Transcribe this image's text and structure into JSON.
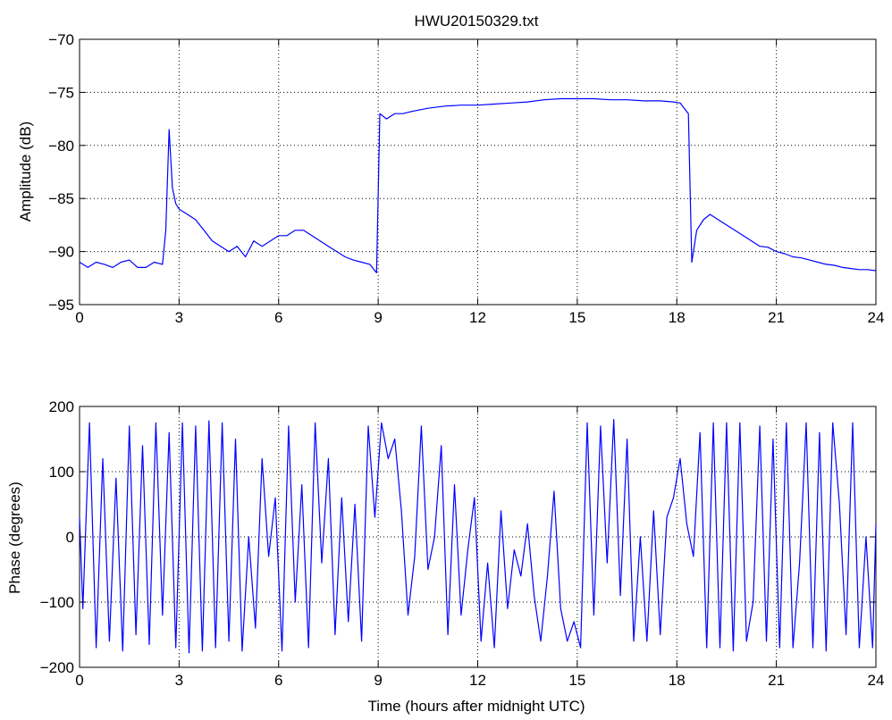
{
  "figure": {
    "title": "HWU20150329.txt"
  },
  "chart_data": [
    {
      "type": "line",
      "title": "HWU20150329.txt",
      "xlabel": "",
      "ylabel": "Amplitude (dB)",
      "xlim": [
        0,
        24
      ],
      "ylim": [
        -95,
        -70
      ],
      "xticks": [
        0,
        3,
        6,
        9,
        12,
        15,
        18,
        21,
        24
      ],
      "xtick_labels": [
        "0",
        "3",
        "6",
        "9",
        "12",
        "15",
        "18",
        "21",
        "24"
      ],
      "yticks": [
        -95,
        -90,
        -85,
        -80,
        -75,
        -70
      ],
      "ytick_labels": [
        "−95",
        "−90",
        "−85",
        "−80",
        "−75",
        "−70"
      ],
      "grid": true,
      "line_color": "#0000ff",
      "series": [
        {
          "x": [
            0,
            0.25,
            0.5,
            0.75,
            1,
            1.25,
            1.5,
            1.75,
            2,
            2.25,
            2.5,
            2.6,
            2.7,
            2.8,
            2.9,
            3,
            3.25,
            3.5,
            3.75,
            4,
            4.25,
            4.5,
            4.75,
            5,
            5.25,
            5.5,
            5.75,
            6,
            6.25,
            6.5,
            6.75,
            7,
            7.25,
            7.5,
            7.75,
            8,
            8.25,
            8.5,
            8.75,
            8.95,
            9.05,
            9.25,
            9.5,
            9.75,
            10,
            10.5,
            11,
            11.5,
            12,
            12.5,
            13,
            13.5,
            14,
            14.5,
            15,
            15.5,
            16,
            16.5,
            17,
            17.5,
            17.9,
            18.1,
            18.35,
            18.45,
            18.6,
            18.8,
            19,
            19.25,
            19.5,
            19.75,
            20,
            20.25,
            20.5,
            20.75,
            21,
            21.25,
            21.5,
            21.75,
            22,
            22.25,
            22.5,
            22.75,
            23,
            23.25,
            23.5,
            23.75,
            24
          ],
          "y": [
            -91,
            -91.5,
            -91,
            -91.2,
            -91.5,
            -91,
            -90.8,
            -91.5,
            -91.5,
            -91,
            -91.2,
            -88,
            -78.5,
            -84,
            -85.5,
            -86,
            -86.5,
            -87,
            -88,
            -89,
            -89.5,
            -90,
            -89.5,
            -90.5,
            -89,
            -89.5,
            -89,
            -88.5,
            -88.5,
            -88,
            -88,
            -88.5,
            -89,
            -89.5,
            -90,
            -90.5,
            -90.8,
            -91,
            -91.2,
            -92,
            -77,
            -77.5,
            -77,
            -77,
            -76.8,
            -76.5,
            -76.3,
            -76.2,
            -76.2,
            -76.1,
            -76,
            -75.9,
            -75.7,
            -75.6,
            -75.6,
            -75.6,
            -75.7,
            -75.7,
            -75.8,
            -75.8,
            -75.9,
            -76,
            -77,
            -91,
            -88,
            -87,
            -86.5,
            -87,
            -87.5,
            -88,
            -88.5,
            -89,
            -89.5,
            -89.6,
            -90,
            -90.2,
            -90.5,
            -90.6,
            -90.8,
            -91,
            -91.2,
            -91.3,
            -91.5,
            -91.6,
            -91.7,
            -91.7,
            -91.8
          ]
        }
      ]
    },
    {
      "type": "line",
      "title": "",
      "xlabel": "Time (hours after midnight UTC)",
      "ylabel": "Phase (degrees)",
      "xlim": [
        0,
        24
      ],
      "ylim": [
        -200,
        200
      ],
      "xticks": [
        0,
        3,
        6,
        9,
        12,
        15,
        18,
        21,
        24
      ],
      "xtick_labels": [
        "0",
        "3",
        "6",
        "9",
        "12",
        "15",
        "18",
        "21",
        "24"
      ],
      "yticks": [
        -200,
        -100,
        0,
        100,
        200
      ],
      "ytick_labels": [
        "−200",
        "−100",
        "0",
        "100",
        "200"
      ],
      "grid": true,
      "line_color": "#0000ff",
      "series": [
        {
          "x": [
            0,
            0.1,
            0.3,
            0.5,
            0.7,
            0.9,
            1.1,
            1.3,
            1.5,
            1.7,
            1.9,
            2.1,
            2.3,
            2.5,
            2.7,
            2.9,
            3.1,
            3.3,
            3.5,
            3.7,
            3.9,
            4.1,
            4.3,
            4.5,
            4.7,
            4.9,
            5.1,
            5.3,
            5.5,
            5.7,
            5.9,
            6.1,
            6.3,
            6.5,
            6.7,
            6.9,
            7.1,
            7.3,
            7.5,
            7.7,
            7.9,
            8.1,
            8.3,
            8.5,
            8.7,
            8.9,
            9.1,
            9.3,
            9.5,
            9.7,
            9.9,
            10.1,
            10.3,
            10.5,
            10.7,
            10.9,
            11.1,
            11.3,
            11.5,
            11.7,
            11.9,
            12.1,
            12.3,
            12.5,
            12.7,
            12.9,
            13.1,
            13.3,
            13.5,
            13.7,
            13.9,
            14.1,
            14.3,
            14.5,
            14.7,
            14.9,
            15.1,
            15.3,
            15.5,
            15.7,
            15.9,
            16.1,
            16.3,
            16.5,
            16.7,
            16.9,
            17.1,
            17.3,
            17.5,
            17.7,
            17.9,
            18.1,
            18.3,
            18.5,
            18.7,
            18.9,
            19.1,
            19.3,
            19.5,
            19.7,
            19.9,
            20.1,
            20.3,
            20.5,
            20.7,
            20.9,
            21.1,
            21.3,
            21.5,
            21.7,
            21.9,
            22.1,
            22.3,
            22.5,
            22.7,
            22.9,
            23.1,
            23.3,
            23.5,
            23.7,
            23.9,
            24
          ],
          "y": [
            30,
            -110,
            175,
            -170,
            120,
            -160,
            90,
            -175,
            170,
            -150,
            140,
            -165,
            175,
            -120,
            160,
            -170,
            175,
            -178,
            170,
            -175,
            178,
            -170,
            175,
            -160,
            150,
            -175,
            0,
            -140,
            120,
            -30,
            60,
            -175,
            170,
            -100,
            80,
            -170,
            175,
            -40,
            120,
            -150,
            60,
            -130,
            50,
            -160,
            170,
            30,
            175,
            120,
            150,
            40,
            -120,
            -30,
            170,
            -50,
            0,
            140,
            -150,
            80,
            -120,
            -20,
            60,
            -160,
            -40,
            -170,
            40,
            -110,
            -20,
            -60,
            20,
            -90,
            -160,
            -60,
            70,
            -110,
            -160,
            -130,
            -170,
            175,
            -120,
            170,
            -40,
            180,
            -90,
            150,
            -160,
            0,
            -160,
            40,
            -150,
            30,
            60,
            120,
            20,
            -30,
            160,
            -170,
            175,
            -170,
            175,
            -175,
            175,
            -160,
            -100,
            170,
            -160,
            150,
            -170,
            175,
            -170,
            -40,
            175,
            -170,
            160,
            -175,
            175,
            50,
            -150,
            175,
            -170,
            0,
            -170,
            20
          ]
        }
      ]
    }
  ]
}
